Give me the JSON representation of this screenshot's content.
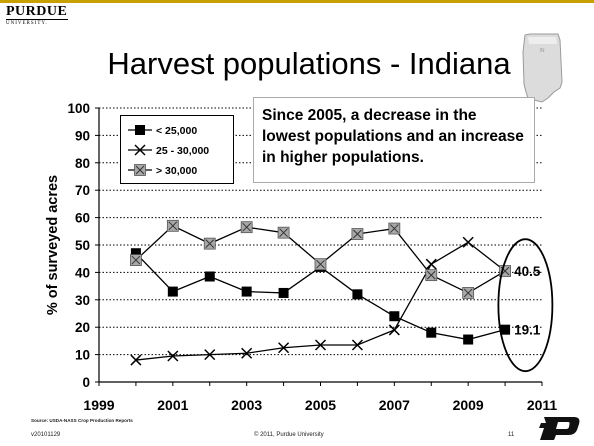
{
  "header": {
    "logo_word": "PURDUE",
    "logo_sub": "UNIVERSITY.",
    "title": "Harvest populations - Indiana",
    "state_map_label": "IN"
  },
  "annotation": {
    "text": "Since 2005, a decrease in the lowest populations and an increase in higher populations."
  },
  "footer": {
    "source": "Source: USDA-NASS Crop Production Reports",
    "date_code": "v20101129",
    "copyright": "© 2011, Purdue University",
    "page": "11"
  },
  "colors": {
    "accent_gold": "#c8a000",
    "series_under_25k": "#000000",
    "series_25_30k": "#000000",
    "series_over_30k": "#a0a0a0"
  },
  "chart_data": {
    "type": "line",
    "title": "",
    "xlabel": "",
    "ylabel": "% of surveyed acres",
    "xlim": [
      1999,
      2011
    ],
    "ylim": [
      0,
      100
    ],
    "x_ticks": [
      1999,
      2001,
      2003,
      2005,
      2007,
      2009,
      2011
    ],
    "y_ticks": [
      0,
      10,
      20,
      30,
      40,
      50,
      60,
      70,
      80,
      90,
      100
    ],
    "grid": "horizontal dotted",
    "legend_position": "top-left",
    "x": [
      2000,
      2001,
      2002,
      2003,
      2004,
      2005,
      2006,
      2007,
      2008,
      2009,
      2010
    ],
    "series": [
      {
        "name": "< 25,000",
        "marker": "square",
        "values": [
          47,
          33,
          38.5,
          33,
          32.5,
          42,
          32,
          24,
          18,
          15.5,
          19.1
        ]
      },
      {
        "name": "25 - 30,000",
        "marker": "x",
        "values": [
          8,
          9.5,
          10,
          10.5,
          12.5,
          13.5,
          13.5,
          19,
          43,
          51,
          40.5
        ]
      },
      {
        "name": "> 30,000",
        "marker": "x-box",
        "values": [
          44.5,
          57,
          50.5,
          56.5,
          54.5,
          43,
          54,
          56,
          39,
          32.5,
          40.5
        ]
      }
    ],
    "data_labels": [
      {
        "text": "40.5",
        "x": 2010,
        "y": 40.5
      },
      {
        "text": "19.1",
        "x": 2010,
        "y": 19.1
      }
    ]
  }
}
